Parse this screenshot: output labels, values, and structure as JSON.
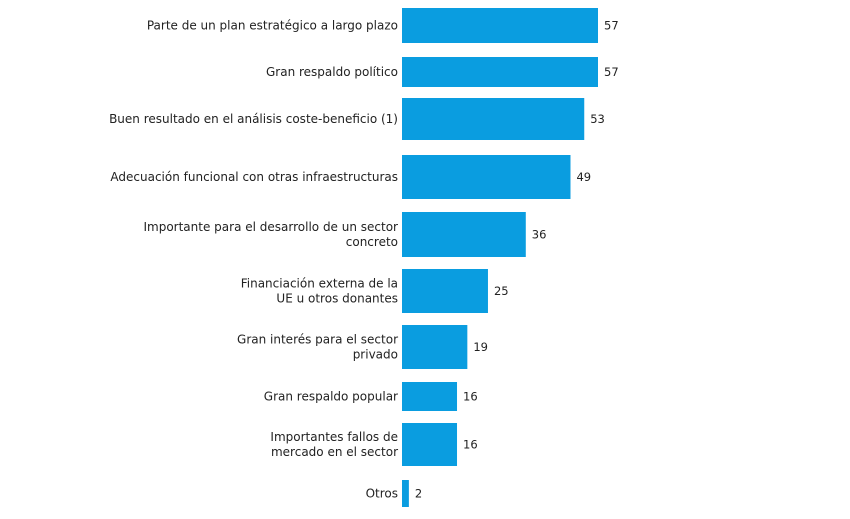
{
  "chart_data": {
    "type": "bar",
    "orientation": "horizontal",
    "title": "",
    "xlabel": "",
    "ylabel": "",
    "xlim": [
      0,
      57
    ],
    "grid": false,
    "legend": "none",
    "bar_color": "#0a9de0",
    "categories": [
      [
        "Parte de un plan estratégico  a largo plazo"
      ],
      [
        "Gran respaldo político"
      ],
      [
        "Buen resultado en el análisis coste-beneficio (1)"
      ],
      [
        "Adecuación funcional con otras infraestructuras"
      ],
      [
        "Importante para el  desarrollo de un sector",
        "concreto"
      ],
      [
        "Financiación externa de la",
        "UE u otros donantes"
      ],
      [
        "Gran interés para el sector",
        "privado"
      ],
      [
        "Gran respaldo popular"
      ],
      [
        "Importantes fallos de",
        "mercado en el sector"
      ],
      [
        "Otros"
      ]
    ],
    "values": [
      57,
      57,
      53,
      49,
      36,
      25,
      19,
      16,
      16,
      2
    ],
    "value_labels": [
      "57",
      "57",
      "53",
      "49",
      "36",
      "25",
      "19",
      "16",
      "16",
      "2"
    ]
  }
}
